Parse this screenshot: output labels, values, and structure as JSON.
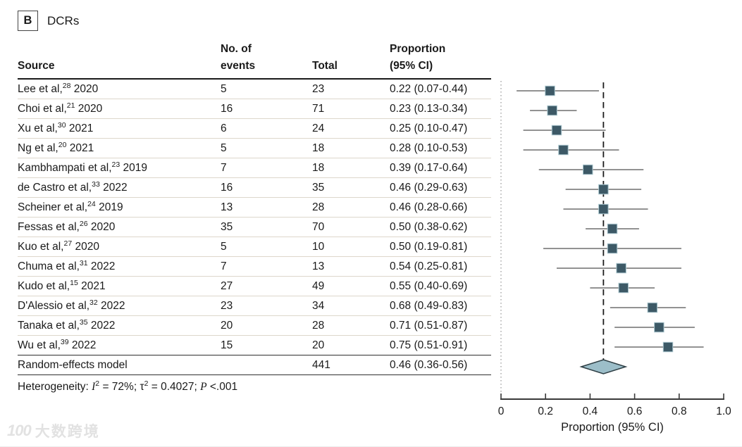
{
  "panel": {
    "label": "B",
    "title": "DCRs"
  },
  "table": {
    "headers": {
      "source": "Source",
      "events_line1": "No. of",
      "events_line2": "events",
      "total": "Total",
      "prop_line1": "Proportion",
      "prop_line2": "(95% CI)"
    }
  },
  "chart_data": {
    "type": "forest",
    "panel": "B",
    "title": "DCRs",
    "xlabel": "Proportion (95% CI)",
    "xlim": [
      0,
      1.0
    ],
    "xticks": [
      0,
      0.2,
      0.4,
      0.6,
      0.8,
      1.0
    ],
    "xtick_labels": [
      "0",
      "0.2",
      "0.4",
      "0.6",
      "0.8",
      "1.0"
    ],
    "pooled_reference_line": 0.46,
    "grid": "off",
    "studies": [
      {
        "label": "Lee et al,",
        "ref": "28",
        "year": "2020",
        "events": "5",
        "total": "23",
        "proportion_text": "0.22 (0.07-0.44)",
        "est": 0.22,
        "lo": 0.07,
        "hi": 0.44
      },
      {
        "label": "Choi et al,",
        "ref": "21",
        "year": "2020",
        "events": "16",
        "total": "71",
        "proportion_text": "0.23 (0.13-0.34)",
        "est": 0.23,
        "lo": 0.13,
        "hi": 0.34
      },
      {
        "label": "Xu et al,",
        "ref": "30",
        "year": "2021",
        "events": "6",
        "total": "24",
        "proportion_text": "0.25 (0.10-0.47)",
        "est": 0.25,
        "lo": 0.1,
        "hi": 0.47
      },
      {
        "label": "Ng et al,",
        "ref": "20",
        "year": "2021",
        "events": "5",
        "total": "18",
        "proportion_text": "0.28 (0.10-0.53)",
        "est": 0.28,
        "lo": 0.1,
        "hi": 0.53
      },
      {
        "label": "Kambhampati et al,",
        "ref": "23",
        "year": "2019",
        "events": "7",
        "total": "18",
        "proportion_text": "0.39 (0.17-0.64)",
        "est": 0.39,
        "lo": 0.17,
        "hi": 0.64
      },
      {
        "label": "de Castro et al,",
        "ref": "33",
        "year": "2022",
        "events": "16",
        "total": "35",
        "proportion_text": "0.46 (0.29-0.63)",
        "est": 0.46,
        "lo": 0.29,
        "hi": 0.63
      },
      {
        "label": "Scheiner et al,",
        "ref": "24",
        "year": "2019",
        "events": "13",
        "total": "28",
        "proportion_text": "0.46 (0.28-0.66)",
        "est": 0.46,
        "lo": 0.28,
        "hi": 0.66
      },
      {
        "label": "Fessas et al,",
        "ref": "26",
        "year": "2020",
        "events": "35",
        "total": "70",
        "proportion_text": "0.50 (0.38-0.62)",
        "est": 0.5,
        "lo": 0.38,
        "hi": 0.62
      },
      {
        "label": "Kuo et al,",
        "ref": "27",
        "year": "2020",
        "events": "5",
        "total": "10",
        "proportion_text": "0.50 (0.19-0.81)",
        "est": 0.5,
        "lo": 0.19,
        "hi": 0.81
      },
      {
        "label": "Chuma et al,",
        "ref": "31",
        "year": "2022",
        "events": "7",
        "total": "13",
        "proportion_text": "0.54 (0.25-0.81)",
        "est": 0.54,
        "lo": 0.25,
        "hi": 0.81
      },
      {
        "label": "Kudo et al,",
        "ref": "15",
        "year": "2021",
        "events": "27",
        "total": "49",
        "proportion_text": "0.55 (0.40-0.69)",
        "est": 0.55,
        "lo": 0.4,
        "hi": 0.69
      },
      {
        "label": "D'Alessio et al,",
        "ref": "32",
        "year": "2022",
        "events": "23",
        "total": "34",
        "proportion_text": "0.68 (0.49-0.83)",
        "est": 0.68,
        "lo": 0.49,
        "hi": 0.83
      },
      {
        "label": "Tanaka et al,",
        "ref": "35",
        "year": "2022",
        "events": "20",
        "total": "28",
        "proportion_text": "0.71 (0.51-0.87)",
        "est": 0.71,
        "lo": 0.51,
        "hi": 0.87
      },
      {
        "label": "Wu et al,",
        "ref": "39",
        "year": "2022",
        "events": "15",
        "total": "20",
        "proportion_text": "0.75 (0.51-0.91)",
        "est": 0.75,
        "lo": 0.51,
        "hi": 0.91
      }
    ],
    "summary": {
      "label": "Random-effects model",
      "events": "",
      "total": "441",
      "proportion_text": "0.46 (0.36-0.56)",
      "est": 0.46,
      "lo": 0.36,
      "hi": 0.56
    },
    "heterogeneity": {
      "label": "Heterogeneity:",
      "I2": "72%",
      "tau2": "0.4027",
      "P": "<.001"
    }
  },
  "colors": {
    "square_fill": "#3d5966",
    "square_edge": "#a9c6ce",
    "ci_line": "#6e6e6e",
    "diamond_fill": "#9cbec9",
    "diamond_edge": "#2e3e44",
    "dashed_line": "#1c1c1c",
    "dotted_line": "#9a9a9a",
    "axis": "#3a3a3a",
    "text": "#1a1a1a"
  },
  "watermark": {
    "icon": "100",
    "text": "大数跨境"
  }
}
